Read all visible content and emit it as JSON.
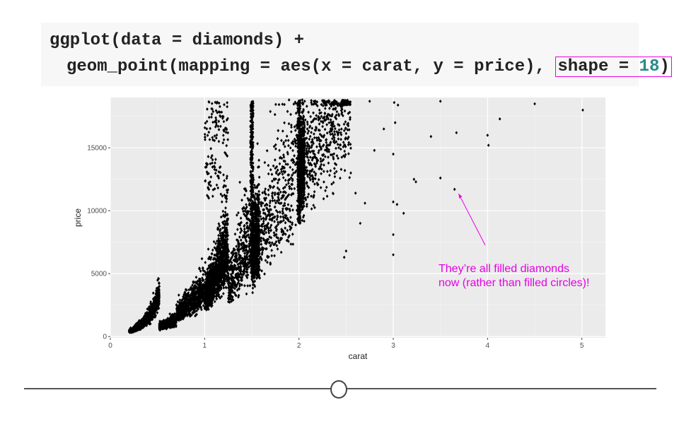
{
  "code": {
    "line1": "ggplot(data = diamonds) +",
    "line2_prefix": "geom_point(mapping = aes(x = carat, y = price),",
    "shape_label": "shape = ",
    "shape_value": "18",
    "closing": ")"
  },
  "annotation": "They’re all filled diamonds\nnow (rather than filled circles)!",
  "colors": {
    "annotation": "#e600e6",
    "points": "#000000",
    "panel": "#ebebeb",
    "grid": "#ffffff"
  },
  "chart_data": {
    "type": "scatter",
    "title": "",
    "xlabel": "carat",
    "ylabel": "price",
    "xlim": [
      0,
      5.25
    ],
    "ylim": [
      -100,
      19000
    ],
    "x_ticks": [
      0,
      1,
      2,
      3,
      4,
      5
    ],
    "x_tick_labels": [
      "0",
      "1",
      "2",
      "3",
      "4",
      "5"
    ],
    "y_ticks": [
      0,
      5000,
      10000,
      15000
    ],
    "y_tick_labels": [
      "0",
      "5000",
      "10000",
      "15000"
    ],
    "grid": true,
    "marker": "filled-diamond",
    "outliers": [
      {
        "x": 2.75,
        "y": 18700
      },
      {
        "x": 3.01,
        "y": 18600
      },
      {
        "x": 3.05,
        "y": 18400
      },
      {
        "x": 3.5,
        "y": 18700
      },
      {
        "x": 4.5,
        "y": 18500
      },
      {
        "x": 5.01,
        "y": 18000
      },
      {
        "x": 4.13,
        "y": 17300
      },
      {
        "x": 3.67,
        "y": 16200
      },
      {
        "x": 4.0,
        "y": 16000
      },
      {
        "x": 4.01,
        "y": 15200
      },
      {
        "x": 3.4,
        "y": 15900
      },
      {
        "x": 3.5,
        "y": 12600
      },
      {
        "x": 3.65,
        "y": 11700
      },
      {
        "x": 3.22,
        "y": 12500
      },
      {
        "x": 3.24,
        "y": 12300
      },
      {
        "x": 3.0,
        "y": 10700
      },
      {
        "x": 3.04,
        "y": 10500
      },
      {
        "x": 3.11,
        "y": 9800
      },
      {
        "x": 3.0,
        "y": 8100
      },
      {
        "x": 3.0,
        "y": 6500
      },
      {
        "x": 2.5,
        "y": 6800
      },
      {
        "x": 2.48,
        "y": 6300
      },
      {
        "x": 2.6,
        "y": 11400
      },
      {
        "x": 2.7,
        "y": 10600
      },
      {
        "x": 2.55,
        "y": 13000
      },
      {
        "x": 2.8,
        "y": 14800
      },
      {
        "x": 3.0,
        "y": 14500
      },
      {
        "x": 3.02,
        "y": 17000
      },
      {
        "x": 2.9,
        "y": 16500
      },
      {
        "x": 2.65,
        "y": 9000
      }
    ]
  }
}
